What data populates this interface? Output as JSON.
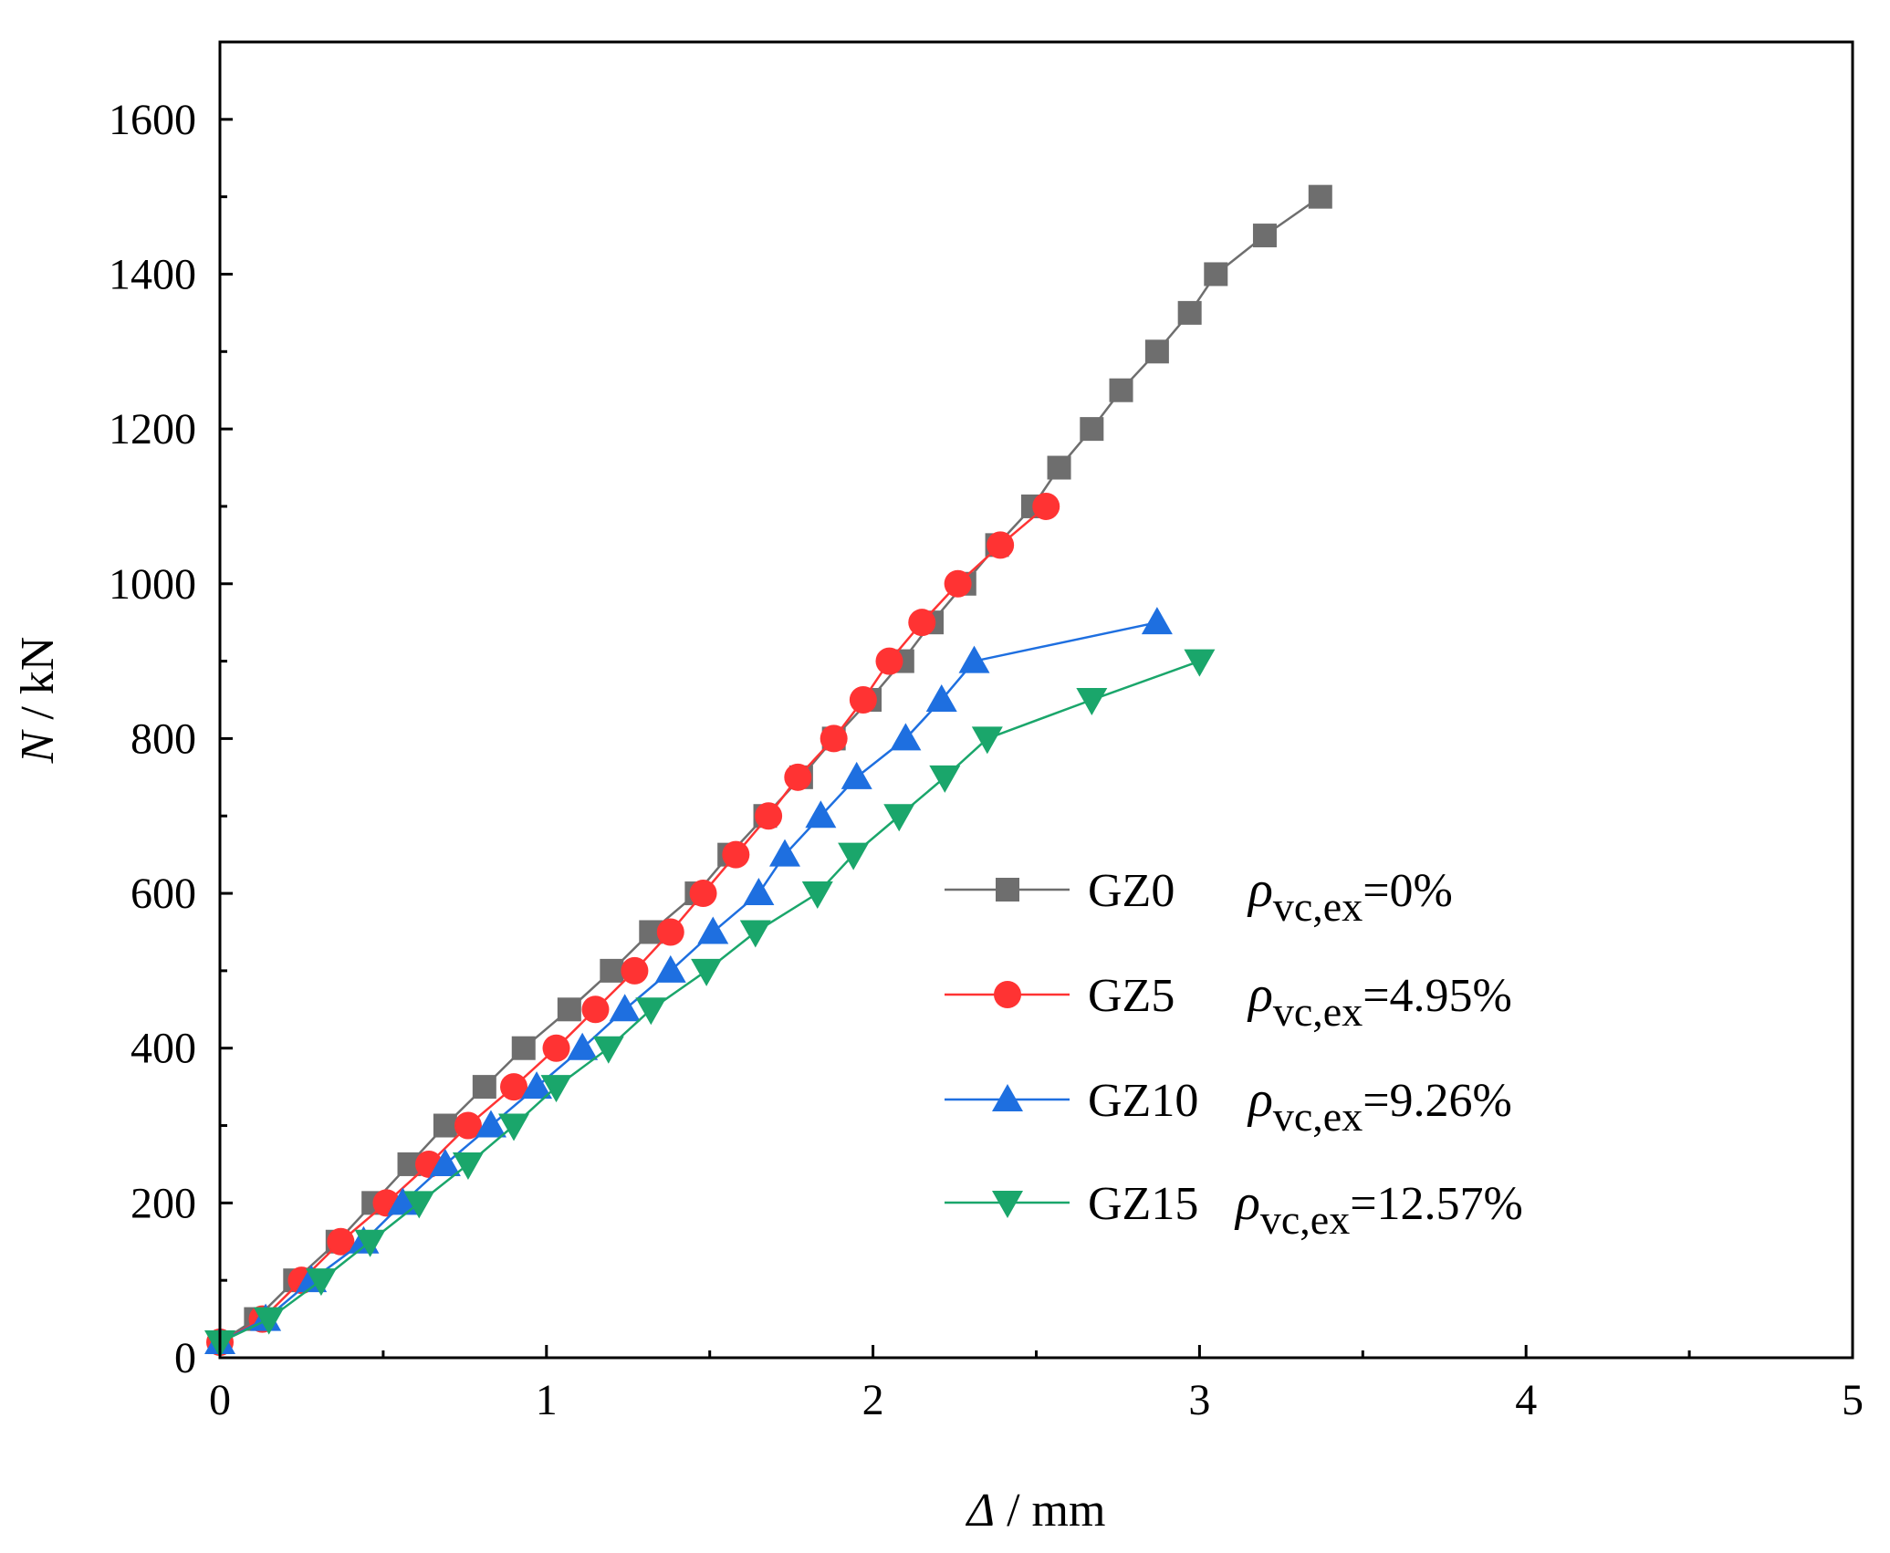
{
  "chart_data": {
    "type": "line",
    "title": "",
    "xlabel": {
      "symbol": "Δ",
      "unit": " / mm"
    },
    "ylabel": {
      "symbol": "N",
      "unit": " / kN"
    },
    "xlim": [
      0,
      5
    ],
    "ylim": [
      0,
      1700
    ],
    "xticks": [
      0,
      1,
      2,
      3,
      4,
      5
    ],
    "yticks": [
      0,
      200,
      400,
      600,
      800,
      1000,
      1200,
      1400,
      1600
    ],
    "grid": false,
    "legend_position": "right-middle",
    "series": [
      {
        "name": "GZ0",
        "rho_symbol": "ρ",
        "rho_sub": "vc,ex",
        "rho_value": "=0%",
        "color": "#6e6e6e",
        "marker": "square",
        "x": [
          0.0,
          0.11,
          0.23,
          0.36,
          0.47,
          0.58,
          0.69,
          0.81,
          0.93,
          1.07,
          1.2,
          1.32,
          1.46,
          1.56,
          1.67,
          1.78,
          1.88,
          1.99,
          2.09,
          2.18,
          2.28,
          2.38,
          2.49,
          2.57,
          2.67,
          2.76,
          2.87,
          2.97,
          3.05,
          3.2,
          3.37
        ],
        "y": [
          20,
          50,
          100,
          150,
          200,
          250,
          300,
          350,
          400,
          450,
          500,
          550,
          600,
          650,
          700,
          750,
          800,
          850,
          900,
          950,
          1000,
          1050,
          1100,
          1150,
          1200,
          1250,
          1300,
          1350,
          1400,
          1450,
          1500
        ]
      },
      {
        "name": "GZ5",
        "rho_symbol": "ρ",
        "rho_sub": "vc,ex",
        "rho_value": "=4.95%",
        "color": "#ff3333",
        "marker": "circle",
        "x": [
          0.0,
          0.13,
          0.25,
          0.37,
          0.51,
          0.64,
          0.76,
          0.9,
          1.03,
          1.15,
          1.27,
          1.38,
          1.48,
          1.58,
          1.68,
          1.77,
          1.88,
          1.97,
          2.05,
          2.15,
          2.26,
          2.39,
          2.53
        ],
        "y": [
          20,
          50,
          100,
          150,
          200,
          250,
          300,
          350,
          400,
          450,
          500,
          550,
          600,
          650,
          700,
          750,
          800,
          850,
          900,
          950,
          1000,
          1050,
          1100
        ]
      },
      {
        "name": "GZ10",
        "rho_symbol": "ρ",
        "rho_sub": "vc,ex",
        "rho_value": "=9.26%",
        "color": "#1e6fe0",
        "marker": "triangle-up",
        "x": [
          0.0,
          0.14,
          0.28,
          0.44,
          0.56,
          0.69,
          0.83,
          0.97,
          1.11,
          1.24,
          1.38,
          1.51,
          1.65,
          1.73,
          1.84,
          1.95,
          2.1,
          2.21,
          2.31,
          2.87
        ],
        "y": [
          20,
          50,
          100,
          150,
          200,
          250,
          300,
          350,
          400,
          450,
          500,
          550,
          600,
          650,
          700,
          750,
          800,
          850,
          900,
          950
        ]
      },
      {
        "name": "GZ15",
        "rho_symbol": "ρ",
        "rho_sub": "vc,ex",
        "rho_value": "=12.57%",
        "color": "#1aa66b",
        "marker": "triangle-down",
        "x": [
          0.0,
          0.15,
          0.31,
          0.46,
          0.61,
          0.76,
          0.9,
          1.03,
          1.19,
          1.32,
          1.49,
          1.64,
          1.83,
          1.94,
          2.08,
          2.22,
          2.35,
          2.67,
          3.0
        ],
        "y": [
          20,
          50,
          100,
          150,
          200,
          250,
          300,
          350,
          400,
          450,
          500,
          550,
          600,
          650,
          700,
          750,
          800,
          850,
          900
        ]
      }
    ]
  }
}
